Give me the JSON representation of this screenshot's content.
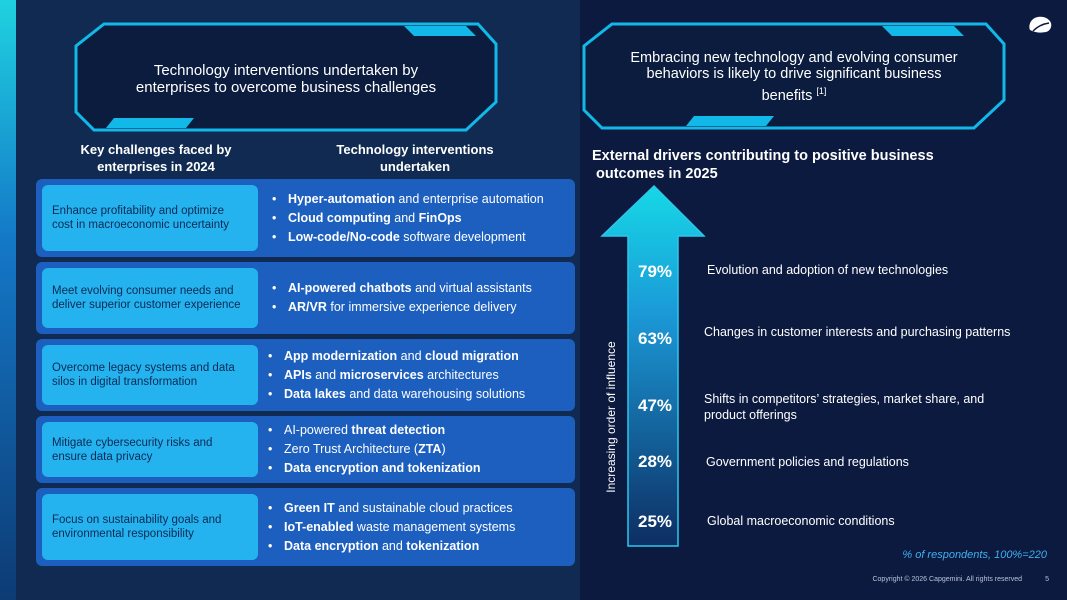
{
  "left": {
    "banner_title_line1": "Technology interventions undertaken by",
    "banner_title_line2": "enterprises to overcome business challenges",
    "col1_header_line1": "Key challenges faced by",
    "col1_header_line2": "enterprises in 2024",
    "col2_header_line1": "Technology interventions",
    "col2_header_line2": "undertaken",
    "rows": [
      {
        "challenge": "Enhance profitability and optimize cost in macroeconomic uncertainty",
        "items": [
          {
            "bold": "Hyper-automation",
            "rest": " and enterprise automation"
          },
          {
            "bold": "Cloud computing",
            "rest": " and ",
            "bold2": "FinOps"
          },
          {
            "bold": "Low-code/No-code",
            "rest": " software development"
          }
        ]
      },
      {
        "challenge": "Meet evolving consumer needs and deliver superior customer experience",
        "items": [
          {
            "bold": "AI-powered chatbots",
            "rest": " and virtual assistants"
          },
          {
            "bold": "AR/VR",
            "rest": " for immersive experience delivery"
          }
        ]
      },
      {
        "challenge": "Overcome legacy systems and data silos in digital transformation",
        "items": [
          {
            "bold": "App modernization",
            "rest": " and ",
            "bold2": "cloud migration"
          },
          {
            "bold": "APIs",
            "rest": " and ",
            "bold2": "microservices",
            "rest2": " architectures"
          },
          {
            "bold": "Data lakes",
            "rest": " and data warehousing solutions"
          }
        ]
      },
      {
        "challenge": "Mitigate cybersecurity risks and ensure data privacy",
        "items": [
          {
            "pre": "AI-powered ",
            "bold": "threat detection"
          },
          {
            "pre": "Zero Trust Architecture (",
            "bold": "ZTA",
            "rest": ")"
          },
          {
            "bold": "Data encryption and tokenization"
          }
        ]
      },
      {
        "challenge": "Focus on sustainability goals and environmental responsibility",
        "items": [
          {
            "bold": "Green IT",
            "rest": " and sustainable cloud practices"
          },
          {
            "bold": "IoT-enabled",
            "rest": " waste management systems"
          },
          {
            "bold": "Data encryption",
            "rest": " and ",
            "bold2": "tokenization"
          }
        ]
      }
    ]
  },
  "right": {
    "banner_line1": "Embracing new technology and evolving consumer",
    "banner_line2": "behaviors is likely to drive significant business",
    "banner_line3": "benefits",
    "banner_ref": "[1]",
    "chart_title_line1": "External drivers contributing to positive business",
    "chart_title_line2": "outcomes in 2025",
    "axis_label": "Increasing order of influence",
    "note": "% of respondents, 100%=220"
  },
  "chart_data": {
    "type": "table",
    "title": "External drivers contributing to positive business outcomes in 2025",
    "ylabel": "Increasing order of influence",
    "unit": "% of respondents, 100%=220",
    "categories": [
      "Evolution and adoption of new technologies",
      "Changes in customer interests and purchasing patterns",
      "Shifts in competitors’ strategies, market share, and product offerings",
      "Government policies and regulations",
      "Global macroeconomic conditions"
    ],
    "values": [
      79,
      63,
      47,
      28,
      25
    ],
    "labels": [
      "79%",
      "63%",
      "47%",
      "28%",
      "25%"
    ]
  },
  "footer": {
    "copyright": "Copyright © 2026 Capgemini. All rights reserved",
    "page": "5"
  },
  "colors": {
    "accent": "#24b3ef",
    "row_bg": "#1c5fbf",
    "banner_stroke": "#12b8e8",
    "note": "#3fb0f0"
  }
}
